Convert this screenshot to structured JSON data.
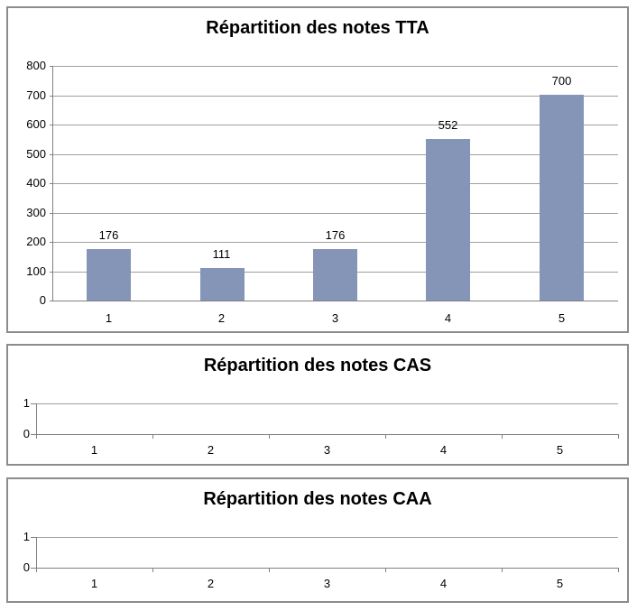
{
  "colors": {
    "bar_fill": "#8595B8",
    "chart_border": "#8C8C8C",
    "gridline": "#A0A0A0",
    "axis_line": "#808080",
    "text": "#000000",
    "background": "#FFFFFF"
  },
  "chart_data": [
    {
      "id": "tta",
      "type": "bar",
      "title": "Répartition des notes TTA",
      "categories": [
        "1",
        "2",
        "3",
        "4",
        "5"
      ],
      "values": [
        176,
        111,
        176,
        552,
        700
      ],
      "data_labels": [
        "176",
        "111",
        "176",
        "552",
        "700"
      ],
      "xlabel": "",
      "ylabel": "",
      "ylim": [
        0,
        800
      ],
      "yticks": [
        800,
        700,
        600,
        500,
        400,
        300,
        200,
        100,
        0
      ],
      "grid": true,
      "legend": "none"
    },
    {
      "id": "cas",
      "type": "bar",
      "title": "Répartition des notes CAS",
      "categories": [
        "1",
        "2",
        "3",
        "4",
        "5"
      ],
      "values": [],
      "data_labels": [],
      "xlabel": "",
      "ylabel": "",
      "ylim": [
        0,
        1
      ],
      "yticks": [
        1,
        0
      ],
      "grid": true,
      "legend": "none"
    },
    {
      "id": "caa",
      "type": "bar",
      "title": "Répartition des notes CAA",
      "categories": [
        "1",
        "2",
        "3",
        "4",
        "5"
      ],
      "values": [],
      "data_labels": [],
      "xlabel": "",
      "ylabel": "",
      "ylim": [
        0,
        1
      ],
      "yticks": [
        1,
        0
      ],
      "grid": true,
      "legend": "none"
    }
  ]
}
